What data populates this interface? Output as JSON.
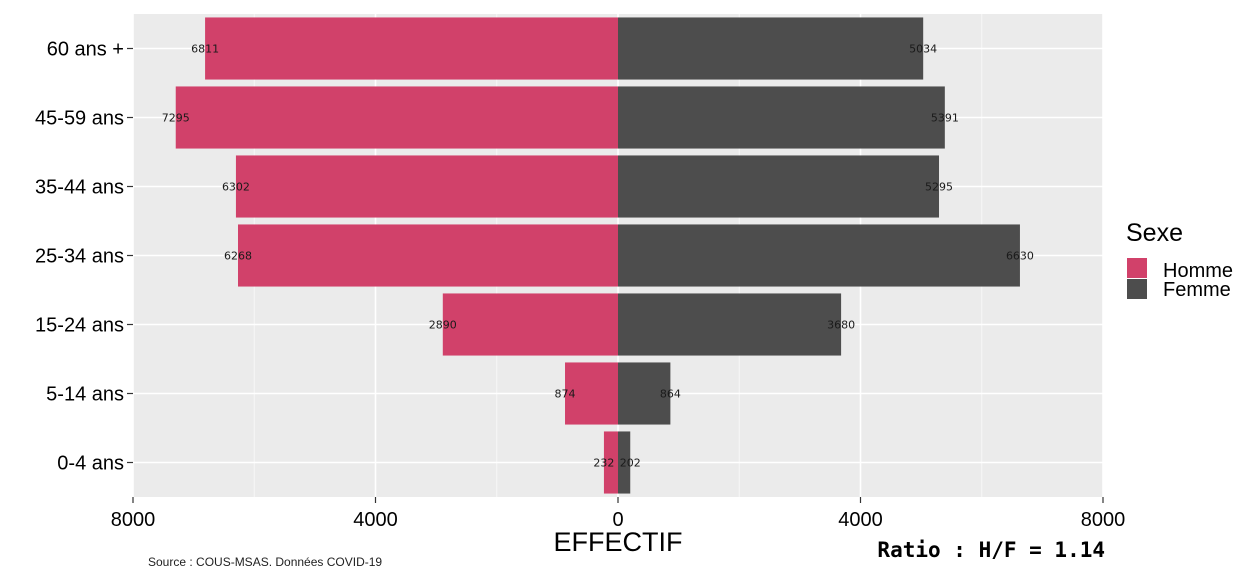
{
  "chart_data": {
    "type": "bar",
    "orientation": "horizontal-pyramid",
    "categories": [
      "0-4 ans",
      "5-14 ans",
      "15-24 ans",
      "25-34 ans",
      "35-44 ans",
      "45-59 ans",
      "60 ans +"
    ],
    "series": [
      {
        "name": "Homme",
        "values": [
          232,
          874,
          2890,
          6268,
          6302,
          7295,
          6811
        ],
        "color": "#d1416a"
      },
      {
        "name": "Femme",
        "values": [
          202,
          864,
          3680,
          6630,
          5295,
          5391,
          5034
        ],
        "color": "#4d4d4d"
      }
    ],
    "xlabel": "EFFECTIF",
    "xlim": [
      -8000,
      8000
    ],
    "xticks": [
      -8000,
      -4000,
      0,
      4000,
      8000
    ],
    "xtick_labels": [
      "8000",
      "4000",
      "0",
      "4000",
      "8000"
    ],
    "grid": true,
    "legend": {
      "title": "Sexe",
      "position": "right"
    },
    "annotation": "Ratio : H/F = 1.14",
    "caption": "Source : COUS-MSAS. Données COVID-19"
  }
}
